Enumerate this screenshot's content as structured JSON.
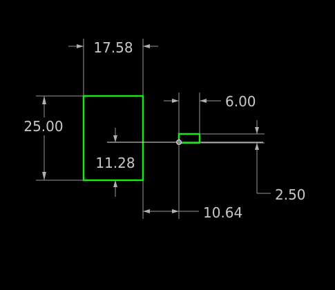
{
  "colors": {
    "background": "#000000",
    "geometry": "#19e619",
    "dimension": "#c8c8c8",
    "vertex": "#19e619"
  },
  "dimensions": {
    "rect_width": "17.58",
    "rect_height": "25.00",
    "inner_offset": "11.28",
    "small_width": "6.00",
    "small_height": "2.50",
    "horizontal_offset": "10.64"
  }
}
